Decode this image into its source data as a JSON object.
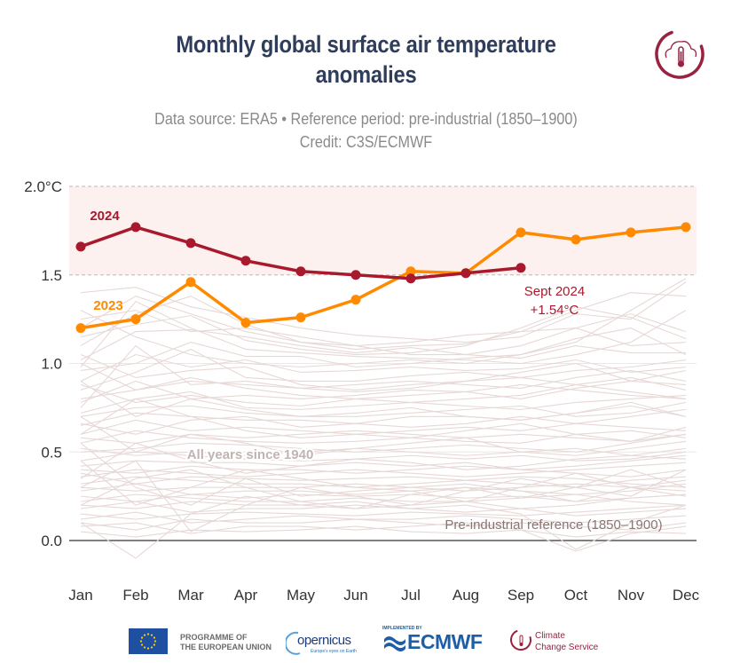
{
  "header": {
    "title_line1": "Monthly global surface air temperature",
    "title_line2": "anomalies",
    "subtitle_line1": "Data source: ERA5 • Reference period: pre-industrial (1850–1900)",
    "subtitle_line2": "Credit: C3S/ECMWF",
    "corner_logo": "c3s-thermometer-cloud-icon"
  },
  "colors": {
    "title": "#2f3d5a",
    "y2024": "#a8192d",
    "y2023": "#ff8a00",
    "background_years": "#e6d8d6",
    "band": "#fdf1f0",
    "annotation_gray": "#c0b4b2",
    "preindustrial_label": "#8a7574"
  },
  "chart_data": {
    "type": "line",
    "title": "Monthly global surface air temperature anomalies",
    "subtitle": "Data source: ERA5 • Reference period: pre-industrial (1850–1900)",
    "credit": "Credit: C3S/ECMWF",
    "xlabel": "",
    "ylabel": "",
    "categories": [
      "Jan",
      "Feb",
      "Mar",
      "Apr",
      "May",
      "Jun",
      "Jul",
      "Aug",
      "Sep",
      "Oct",
      "Nov",
      "Dec"
    ],
    "ylim": [
      0.0,
      2.0
    ],
    "y_ticks": [
      {
        "value": 2.0,
        "label": "2.0°C"
      },
      {
        "value": 1.5,
        "label": "1.5"
      },
      {
        "value": 1.0,
        "label": "1.0"
      },
      {
        "value": 0.5,
        "label": "0.5"
      },
      {
        "value": 0.0,
        "label": "0.0"
      }
    ],
    "grid": true,
    "highlight_band": {
      "from": 1.5,
      "to": 2.0
    },
    "series": [
      {
        "name": "2024",
        "label": "2024",
        "values": [
          1.66,
          1.77,
          1.68,
          1.58,
          1.52,
          1.5,
          1.48,
          1.51,
          1.54
        ]
      },
      {
        "name": "2023",
        "label": "2023",
        "values": [
          1.2,
          1.25,
          1.46,
          1.23,
          1.26,
          1.36,
          1.52,
          1.51,
          1.74,
          1.7,
          1.74,
          1.77
        ]
      }
    ],
    "background_series_label": "All years since 1940",
    "background_series_note": "Thin light lines for every year 1940–2022 (approximate values)",
    "background_series": [
      [
        1.15,
        1.22,
        1.27,
        1.13,
        1.08,
        1.05,
        1.06,
        1.1,
        1.2,
        1.32,
        1.26,
        1.14
      ],
      [
        1.1,
        1.28,
        1.38,
        1.22,
        1.12,
        1.08,
        1.1,
        1.11,
        1.18,
        1.3,
        1.4,
        1.38
      ],
      [
        1.02,
        1.18,
        1.19,
        1.15,
        1.1,
        1.06,
        1.09,
        1.05,
        1.1,
        1.2,
        1.1,
        1.12
      ],
      [
        0.98,
        1.35,
        1.2,
        1.08,
        1.06,
        1.04,
        1.03,
        1.02,
        1.0,
        1.05,
        1.12,
        1.3
      ],
      [
        1.25,
        1.3,
        1.18,
        1.2,
        1.15,
        1.1,
        1.05,
        1.05,
        1.03,
        1.1,
        1.06,
        1.06
      ],
      [
        0.96,
        1.0,
        1.12,
        1.04,
        1.04,
        0.98,
        1.0,
        1.03,
        1.05,
        1.12,
        1.3,
        1.48
      ],
      [
        0.9,
        1.05,
        0.98,
        1.02,
        0.95,
        0.96,
        0.98,
        0.96,
        0.97,
        1.02,
        0.95,
        0.98
      ],
      [
        0.85,
        0.95,
        1.08,
        0.92,
        0.9,
        0.9,
        0.93,
        0.95,
        0.92,
        0.96,
        0.98,
        1.02
      ],
      [
        1.05,
        0.92,
        0.96,
        0.98,
        0.88,
        0.85,
        0.88,
        0.9,
        0.95,
        1.0,
        0.9,
        0.88
      ],
      [
        0.8,
        0.85,
        0.9,
        0.88,
        0.86,
        0.88,
        0.9,
        0.88,
        0.86,
        0.92,
        0.96,
        0.9
      ],
      [
        0.78,
        0.9,
        0.8,
        0.82,
        0.8,
        0.82,
        0.85,
        0.84,
        0.88,
        0.85,
        0.82,
        0.8
      ],
      [
        0.88,
        0.78,
        0.82,
        0.78,
        0.76,
        0.8,
        0.78,
        0.8,
        0.82,
        0.88,
        0.92,
        0.85
      ],
      [
        0.72,
        0.8,
        0.84,
        0.75,
        0.74,
        0.76,
        0.78,
        0.76,
        0.74,
        0.78,
        0.8,
        0.82
      ],
      [
        0.7,
        0.75,
        0.76,
        0.72,
        0.7,
        0.7,
        0.72,
        0.74,
        0.76,
        0.7,
        0.72,
        0.78
      ],
      [
        0.65,
        0.72,
        0.7,
        0.68,
        0.68,
        0.66,
        0.7,
        0.7,
        0.68,
        0.72,
        0.76,
        0.7
      ],
      [
        0.66,
        0.6,
        0.68,
        0.7,
        0.64,
        0.66,
        0.64,
        0.66,
        0.7,
        0.66,
        0.64,
        0.62
      ],
      [
        0.6,
        0.68,
        0.62,
        0.64,
        0.62,
        0.6,
        0.62,
        0.64,
        0.62,
        0.66,
        0.7,
        0.74
      ],
      [
        0.58,
        0.55,
        0.6,
        0.58,
        0.6,
        0.62,
        0.6,
        0.58,
        0.6,
        0.58,
        0.56,
        0.6
      ],
      [
        0.55,
        0.62,
        0.58,
        0.56,
        0.55,
        0.56,
        0.58,
        0.56,
        0.55,
        0.6,
        0.62,
        0.58
      ],
      [
        0.5,
        0.52,
        0.55,
        0.54,
        0.52,
        0.5,
        0.52,
        0.54,
        0.52,
        0.5,
        0.55,
        0.6
      ],
      [
        0.52,
        0.48,
        0.5,
        0.48,
        0.5,
        0.52,
        0.5,
        0.48,
        0.5,
        0.52,
        0.48,
        0.46
      ],
      [
        0.45,
        0.5,
        0.48,
        0.46,
        0.45,
        0.46,
        0.48,
        0.46,
        0.48,
        0.45,
        0.46,
        0.5
      ],
      [
        0.42,
        0.45,
        0.44,
        0.44,
        0.42,
        0.44,
        0.42,
        0.44,
        0.4,
        0.42,
        0.45,
        0.48
      ],
      [
        0.4,
        0.38,
        0.42,
        0.4,
        0.4,
        0.38,
        0.4,
        0.42,
        0.4,
        0.38,
        0.36,
        0.4
      ],
      [
        0.36,
        0.4,
        0.38,
        0.36,
        0.38,
        0.4,
        0.38,
        0.36,
        0.38,
        0.4,
        0.42,
        0.44
      ],
      [
        0.38,
        0.32,
        0.36,
        0.35,
        0.34,
        0.35,
        0.36,
        0.34,
        0.36,
        0.35,
        0.32,
        0.3
      ],
      [
        0.32,
        0.36,
        0.34,
        0.32,
        0.32,
        0.3,
        0.32,
        0.34,
        0.32,
        0.3,
        0.34,
        0.36
      ],
      [
        0.3,
        0.28,
        0.3,
        0.3,
        0.3,
        0.32,
        0.3,
        0.28,
        0.3,
        0.32,
        0.3,
        0.28
      ],
      [
        0.28,
        0.32,
        0.26,
        0.28,
        0.28,
        0.26,
        0.28,
        0.3,
        0.28,
        0.26,
        0.28,
        0.32
      ],
      [
        0.25,
        0.22,
        0.26,
        0.24,
        0.26,
        0.25,
        0.26,
        0.24,
        0.25,
        0.22,
        0.24,
        0.26
      ],
      [
        0.22,
        0.26,
        0.24,
        0.22,
        0.22,
        0.24,
        0.22,
        0.22,
        0.24,
        0.26,
        0.22,
        0.2
      ],
      [
        0.2,
        0.18,
        0.22,
        0.2,
        0.2,
        0.18,
        0.2,
        0.22,
        0.18,
        0.2,
        0.24,
        0.26
      ],
      [
        0.18,
        0.22,
        0.16,
        0.18,
        0.18,
        0.2,
        0.18,
        0.16,
        0.18,
        0.14,
        0.16,
        0.18
      ],
      [
        0.15,
        0.12,
        0.15,
        0.16,
        0.15,
        0.14,
        0.16,
        0.15,
        0.14,
        0.16,
        0.18,
        0.2
      ],
      [
        0.12,
        0.16,
        0.1,
        0.12,
        0.14,
        0.12,
        0.12,
        0.14,
        0.12,
        0.1,
        0.12,
        0.14
      ],
      [
        0.1,
        0.06,
        0.12,
        0.1,
        0.1,
        0.12,
        0.1,
        0.08,
        0.1,
        0.08,
        0.06,
        0.1
      ],
      [
        0.08,
        0.1,
        0.04,
        0.08,
        0.08,
        0.06,
        0.08,
        0.1,
        0.06,
        -0.06,
        0.04,
        0.08
      ],
      [
        0.05,
        0.02,
        0.06,
        0.05,
        0.06,
        0.08,
        0.05,
        0.04,
        0.06,
        0.02,
        0.05,
        0.04
      ],
      [
        0.55,
        0.3,
        0.2,
        0.35,
        0.25,
        0.28,
        0.3,
        0.32,
        0.28,
        0.22,
        0.3,
        0.34
      ],
      [
        0.3,
        0.45,
        0.05,
        0.2,
        0.3,
        0.25,
        0.2,
        0.28,
        0.35,
        0.3,
        0.25,
        0.4
      ],
      [
        0.1,
        -0.1,
        0.15,
        0.25,
        0.2,
        0.22,
        0.18,
        0.2,
        0.15,
        -0.05,
        0.1,
        0.2
      ],
      [
        0.2,
        0.35,
        0.4,
        0.3,
        0.22,
        0.18,
        0.26,
        0.3,
        0.24,
        0.3,
        0.4,
        0.3
      ],
      [
        0.45,
        0.2,
        0.3,
        0.4,
        0.35,
        0.3,
        0.28,
        0.22,
        0.3,
        0.38,
        0.3,
        0.25
      ],
      [
        0.7,
        0.5,
        0.6,
        0.55,
        0.48,
        0.52,
        0.55,
        0.58,
        0.5,
        0.48,
        0.52,
        0.56
      ],
      [
        0.35,
        0.55,
        0.45,
        0.38,
        0.42,
        0.46,
        0.44,
        0.4,
        0.42,
        0.46,
        0.48,
        0.52
      ],
      [
        0.6,
        0.8,
        0.7,
        0.62,
        0.58,
        0.6,
        0.58,
        0.62,
        0.66,
        0.6,
        0.56,
        0.64
      ],
      [
        0.9,
        0.7,
        0.8,
        0.74,
        0.7,
        0.72,
        0.75,
        0.7,
        0.68,
        0.72,
        0.78,
        0.7
      ],
      [
        1.0,
        0.85,
        0.92,
        0.86,
        0.82,
        0.8,
        0.82,
        0.84,
        0.8,
        0.86,
        0.9,
        0.96
      ],
      [
        0.75,
        1.1,
        0.88,
        0.9,
        0.86,
        0.84,
        0.86,
        0.9,
        0.92,
        0.88,
        0.84,
        0.8
      ],
      [
        1.3,
        1.15,
        1.05,
        1.0,
        0.98,
        1.0,
        1.02,
        1.0,
        1.05,
        1.14,
        1.2,
        1.05
      ],
      [
        1.2,
        1.38,
        1.28,
        1.18,
        1.12,
        1.1,
        1.12,
        1.16,
        1.18,
        1.2,
        1.28,
        1.18
      ],
      [
        1.4,
        1.43,
        1.32,
        1.26,
        1.2,
        1.16,
        1.14,
        1.12,
        1.15,
        1.28,
        1.25,
        1.46
      ]
    ],
    "annotations": [
      {
        "text": "2024",
        "series": "2024"
      },
      {
        "text": "2023",
        "series": "2023"
      },
      {
        "text_line1": "Sept 2024",
        "text_line2": "+1.54°C",
        "series": "2024",
        "month": "Sep"
      },
      {
        "text": "All years since 1940"
      },
      {
        "text": "Pre-industrial reference (1850–1900)"
      }
    ]
  },
  "footer": {
    "eu_line1": "PROGRAMME OF",
    "eu_line2": "THE EUROPEAN UNION",
    "copernicus": "opernicus",
    "copernicus_tagline": "Europe's eyes on Earth",
    "ecmwf_small": "IMPLEMENTED BY",
    "ecmwf": "ECMWF",
    "ccs_line1": "Climate",
    "ccs_line2": "Change Service"
  }
}
